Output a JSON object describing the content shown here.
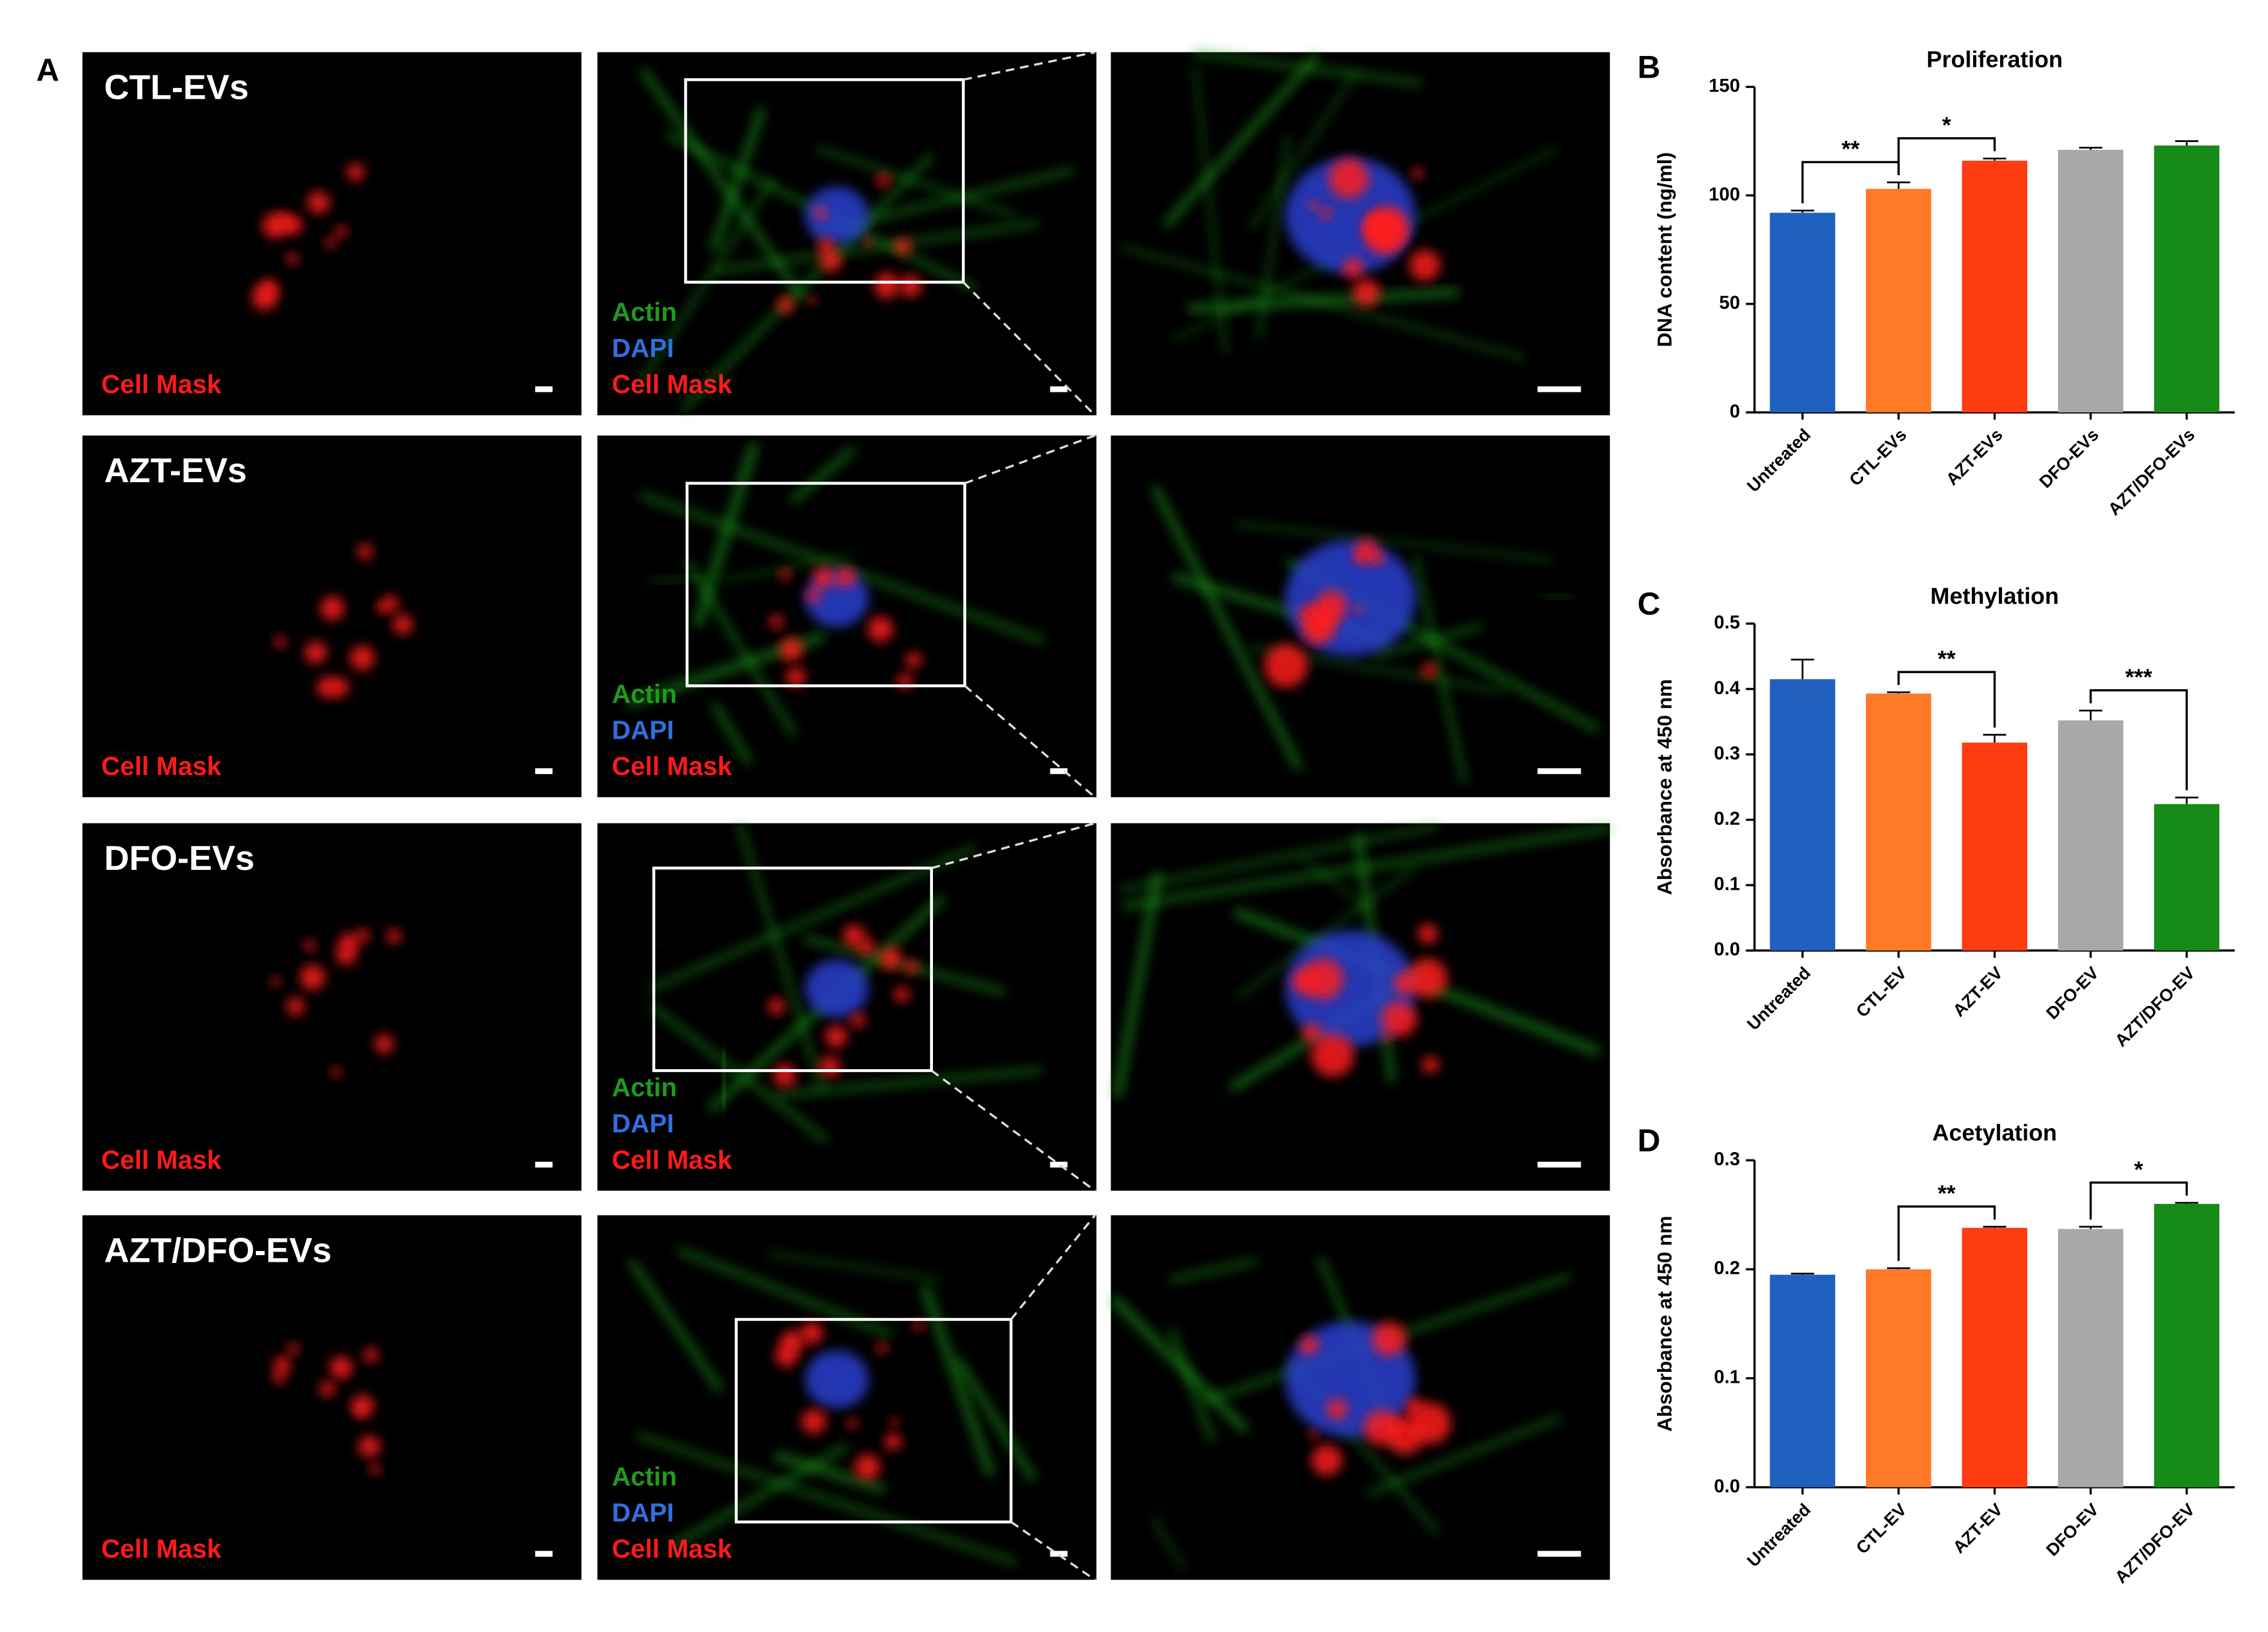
{
  "panel_labels": [
    "A",
    "B",
    "C",
    "D"
  ],
  "microscopy": {
    "conditions": [
      "CTL-EVs",
      "AZT-EVs",
      "DFO-EVs",
      "AZT/DFO-EVs"
    ],
    "stains": [
      {
        "text": "Actin",
        "color": "#1f9a1f"
      },
      {
        "text": "DAPI",
        "color": "#2f6fe0"
      },
      {
        "text": "Cell Mask",
        "color": "#ff1a1a"
      }
    ]
  },
  "chart_data": [
    {
      "type": "bar",
      "title": "Proliferation",
      "y_label": "DNA content (ng/ml)",
      "categories": [
        "Untreated",
        "CTL-EVs",
        "AZT-EVs",
        "DFO-EVs",
        "AZT/DFO-EVs"
      ],
      "values": [
        92,
        103,
        116,
        121,
        123
      ],
      "errors": [
        1,
        3,
        1,
        1,
        2
      ],
      "colors": [
        "#1f60c0",
        "#ff7a26",
        "#ff3c12",
        "#a8a8a8",
        "#168a16"
      ],
      "ylim": [
        0,
        150
      ],
      "yticks": [
        0,
        50,
        100,
        150
      ],
      "significance": [
        {
          "from": 0,
          "to": 1,
          "label": "**"
        },
        {
          "from": 1,
          "to": 2,
          "label": "*"
        }
      ]
    },
    {
      "type": "bar",
      "title": "Methylation",
      "y_label": "Absorbance at 450 nm",
      "categories": [
        "Untreated",
        "CTL-EV",
        "AZT-EV",
        "DFO-EV",
        "AZT/DFO-EV"
      ],
      "values": [
        0.415,
        0.393,
        0.318,
        0.352,
        0.224
      ],
      "errors": [
        0.03,
        0.002,
        0.012,
        0.015,
        0.01
      ],
      "colors": [
        "#1f60c0",
        "#ff7a26",
        "#ff3c12",
        "#a8a8a8",
        "#168a16"
      ],
      "ylim": [
        0,
        0.5
      ],
      "yticks": [
        {
          "value": 0,
          "label": "0.0"
        },
        0.1,
        0.2,
        0.3,
        0.4,
        0.5
      ],
      "significance": [
        {
          "from": 1,
          "to": 2,
          "label": "**"
        },
        {
          "from": 3,
          "to": 4,
          "label": "***"
        }
      ]
    },
    {
      "type": "bar",
      "title": "Acetylation",
      "y_label": "Absorbance at 450 nm",
      "categories": [
        "Untreated",
        "CTL-EV",
        "AZT-EV",
        "DFO-EV",
        "AZT/DFO-EV"
      ],
      "values": [
        0.195,
        0.2,
        0.238,
        0.237,
        0.26
      ],
      "errors": [
        0.001,
        0.001,
        0.001,
        0.002,
        0.001
      ],
      "colors": [
        "#1f60c0",
        "#ff7a26",
        "#ff3c12",
        "#a8a8a8",
        "#168a16"
      ],
      "ylim": [
        0,
        0.3
      ],
      "yticks": [
        {
          "value": 0,
          "label": "0.0"
        },
        0.1,
        0.2,
        0.3
      ],
      "significance": [
        {
          "from": 1,
          "to": 2,
          "label": "**"
        },
        {
          "from": 3,
          "to": 4,
          "label": "*"
        }
      ]
    }
  ]
}
